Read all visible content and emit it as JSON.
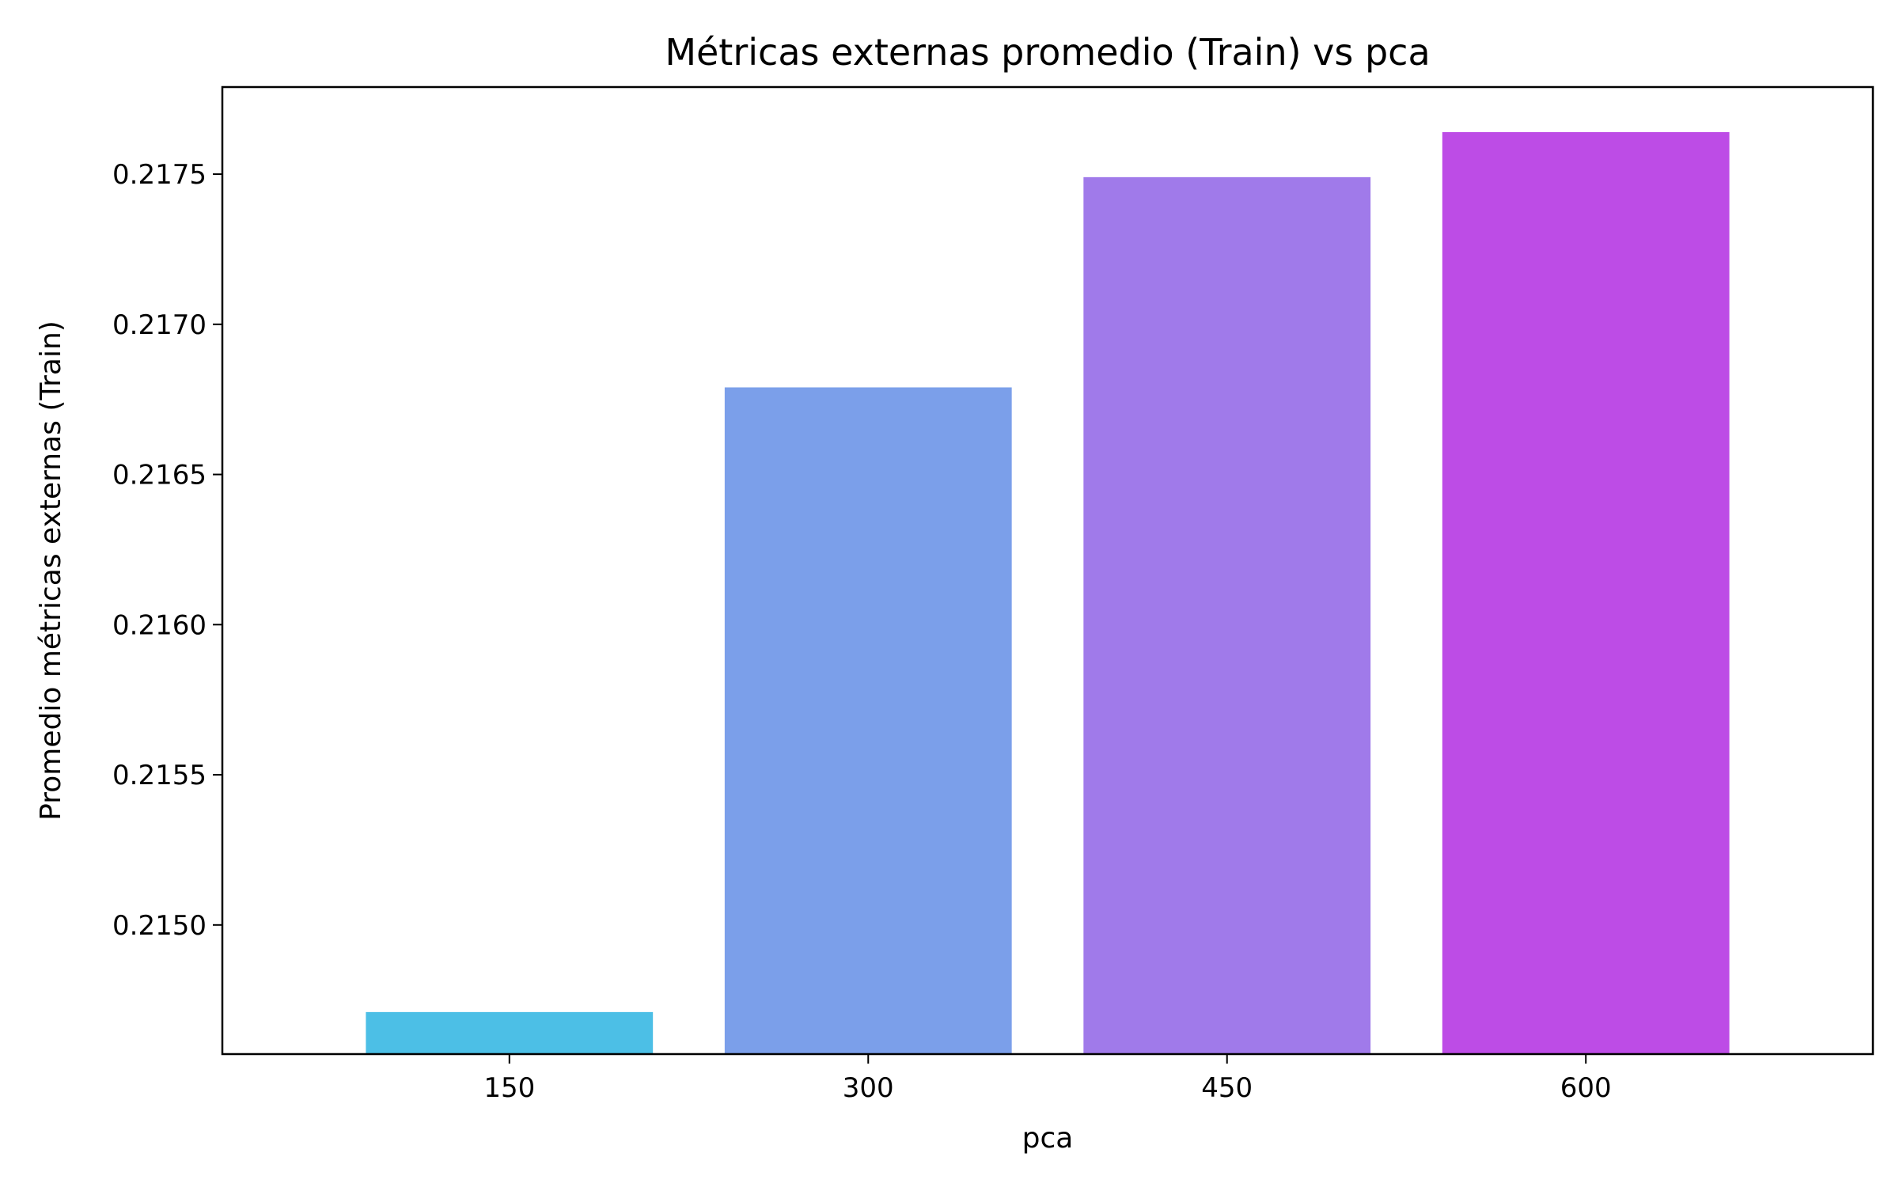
{
  "chart_data": {
    "type": "bar",
    "title": "Métricas externas promedio (Train) vs pca",
    "xlabel": "pca",
    "ylabel": "Promedio métricas externas (Train)",
    "categories": [
      "150",
      "300",
      "450",
      "600"
    ],
    "values": [
      0.21471,
      0.21679,
      0.21749,
      0.21764
    ],
    "ylim": [
      0.21457,
      0.21779
    ],
    "yticks": [
      "0.2150",
      "0.2155",
      "0.2160",
      "0.2165",
      "0.2170",
      "0.2175"
    ],
    "colors": [
      "#4cbfe6",
      "#7b9fea",
      "#a07aea",
      "#bd4ce6"
    ],
    "grid": false,
    "legend": "none"
  }
}
